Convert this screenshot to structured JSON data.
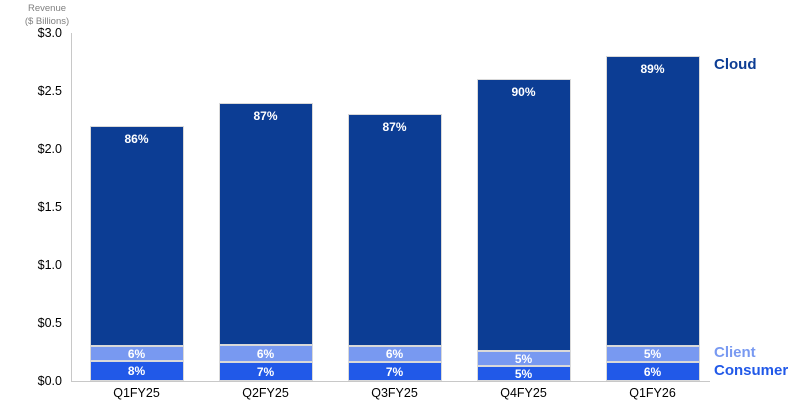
{
  "page": {
    "background": "#ffffff"
  },
  "chart_data": {
    "type": "bar",
    "stacked": true,
    "title": "",
    "ylabel_line1": "Revenue",
    "ylabel_line2": "($ Billions)",
    "categories": [
      "Q1FY25",
      "Q2FY25",
      "Q3FY25",
      "Q4FY25",
      "Q1FY26"
    ],
    "totals_billions": [
      2.2,
      2.4,
      2.3,
      2.6,
      2.8
    ],
    "series": [
      {
        "name": "Cloud",
        "color": "#0c3d94",
        "pct": [
          86,
          87,
          87,
          90,
          89
        ]
      },
      {
        "name": "Client",
        "color": "#7899f1",
        "pct": [
          6,
          6,
          6,
          5,
          5
        ]
      },
      {
        "name": "Consumer",
        "color": "#2159e8",
        "pct": [
          8,
          7,
          7,
          5,
          6
        ]
      }
    ],
    "segment_labels": [
      [
        "86%",
        "87%",
        "87%",
        "90%",
        "89%"
      ],
      [
        "6%",
        "6%",
        "6%",
        "5%",
        "5%"
      ],
      [
        "8%",
        "7%",
        "7%",
        "5%",
        "6%"
      ]
    ],
    "y_ticks": [
      "$3.0",
      "$2.5",
      "$2.0",
      "$1.5",
      "$1.0",
      "$0.5",
      "$0.0"
    ],
    "ylim": [
      0,
      3.0
    ],
    "grid": false,
    "legend_position": "right",
    "axis_color": "#c8c8c8",
    "tick_label_color": "#000000",
    "ylabel_color": "#808080",
    "bar_label_color": "#ffffff",
    "segment_border_color": "#d9d9d9"
  }
}
